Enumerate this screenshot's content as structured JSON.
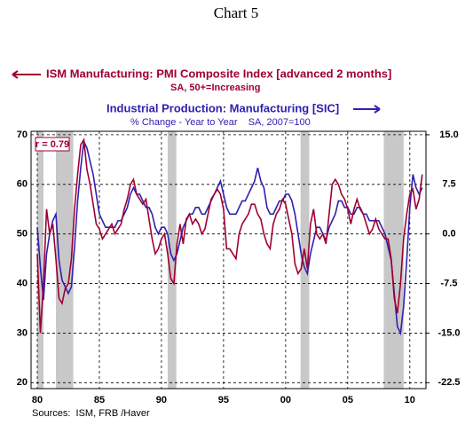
{
  "chart_data": {
    "type": "line",
    "title": "Chart 5",
    "source": "Sources:  ISM, FRB /Haver",
    "annotation": "r = 0.79",
    "x": [
      1980,
      1980.25,
      1980.5,
      1980.75,
      1981,
      1981.25,
      1981.5,
      1981.75,
      1982,
      1982.25,
      1982.5,
      1982.75,
      1983,
      1983.25,
      1983.5,
      1983.75,
      1984,
      1984.25,
      1984.5,
      1984.75,
      1985,
      1985.25,
      1985.5,
      1985.75,
      1986,
      1986.25,
      1986.5,
      1986.75,
      1987,
      1987.25,
      1987.5,
      1987.75,
      1988,
      1988.25,
      1988.5,
      1988.75,
      1989,
      1989.25,
      1989.5,
      1989.75,
      1990,
      1990.25,
      1990.5,
      1990.75,
      1991,
      1991.25,
      1991.5,
      1991.75,
      1992,
      1992.25,
      1992.5,
      1992.75,
      1993,
      1993.25,
      1993.5,
      1993.75,
      1994,
      1994.25,
      1994.5,
      1994.75,
      1995,
      1995.25,
      1995.5,
      1995.75,
      1996,
      1996.25,
      1996.5,
      1996.75,
      1997,
      1997.25,
      1997.5,
      1997.75,
      1998,
      1998.25,
      1998.5,
      1998.75,
      1999,
      1999.25,
      1999.5,
      1999.75,
      2000,
      2000.25,
      2000.5,
      2000.75,
      2001,
      2001.25,
      2001.5,
      2001.75,
      2002,
      2002.25,
      2002.5,
      2002.75,
      2003,
      2003.25,
      2003.5,
      2003.75,
      2004,
      2004.25,
      2004.5,
      2004.75,
      2005,
      2005.25,
      2005.5,
      2005.75,
      2006,
      2006.25,
      2006.5,
      2006.75,
      2007,
      2007.25,
      2007.5,
      2007.75,
      2008,
      2008.25,
      2008.5,
      2008.75,
      2009,
      2009.25,
      2009.5,
      2009.75,
      2010,
      2010.25,
      2010.5,
      2010.75,
      2011
    ],
    "series": [
      {
        "name": "ISM Manufacturing: PMI Composite Index [advanced 2 months]",
        "subtitle": "SA, 50+=Increasing",
        "color": "#a00030",
        "axis": "y",
        "values": [
          46,
          30,
          40,
          55,
          50,
          52,
          45,
          37,
          36,
          39,
          40,
          45,
          55,
          62,
          68,
          69,
          63,
          60,
          56,
          52,
          51,
          49,
          50,
          51,
          52,
          50,
          51,
          52,
          55,
          57,
          60,
          61,
          58,
          57,
          56,
          57,
          53,
          49,
          46,
          47,
          49,
          50,
          46,
          41,
          40,
          48,
          52,
          48,
          53,
          54,
          52,
          53,
          52,
          50,
          51,
          54,
          57,
          58,
          59,
          58,
          55,
          47,
          47,
          46,
          45,
          50,
          52,
          53,
          54,
          56,
          56,
          54,
          53,
          50,
          48,
          47,
          52,
          54,
          55,
          57,
          56,
          53,
          50,
          44,
          42,
          43,
          47,
          43,
          52,
          55,
          50,
          49,
          50,
          48,
          54,
          60,
          61,
          60,
          58,
          57,
          55,
          52,
          55,
          57,
          55,
          54,
          52,
          50,
          51,
          53,
          51,
          50,
          49,
          49,
          45,
          37,
          34,
          40,
          49,
          54,
          58,
          59,
          55,
          57,
          62
        ]
      },
      {
        "name": "Industrial Production: Manufacturing [SIC]",
        "subtitle": "% Change - Year to Year    SA, 2007=100",
        "color": "#3020b0",
        "axis": "y2",
        "values": [
          1,
          -5,
          -10,
          -3,
          0,
          2,
          3,
          -4,
          -7,
          -8,
          -9,
          -8,
          -2,
          5,
          10,
          14,
          13,
          11,
          9,
          6,
          3,
          2,
          1,
          1,
          1,
          1,
          2,
          2,
          3,
          4,
          6,
          7,
          6,
          6,
          5,
          4,
          4,
          3,
          1,
          0,
          1,
          1,
          0,
          -3,
          -4,
          -3,
          -1,
          1,
          2,
          3,
          3,
          4,
          4,
          3,
          3,
          4,
          5,
          6,
          7,
          8,
          6,
          4,
          3,
          3,
          3,
          4,
          5,
          5,
          6,
          7,
          8,
          10,
          8,
          7,
          4,
          3,
          3,
          4,
          5,
          5,
          6,
          6,
          5,
          3,
          0,
          -3,
          -5,
          -6,
          -3,
          -1,
          1,
          1,
          0,
          -1,
          1,
          2,
          3,
          5,
          5,
          4,
          4,
          3,
          3,
          4,
          4,
          3,
          3,
          2,
          2,
          2,
          2,
          1,
          0,
          -2,
          -4,
          -9,
          -14,
          -15,
          -11,
          -4,
          4,
          9,
          7,
          6,
          7
        ]
      }
    ],
    "recessions": [
      [
        1980.0,
        1980.5
      ],
      [
        1981.5,
        1982.9
      ],
      [
        1990.5,
        1991.2
      ],
      [
        2001.2,
        2001.9
      ],
      [
        2007.9,
        2009.5
      ]
    ],
    "xlim": [
      1979.5,
      2011.3
    ],
    "xticks": [
      {
        "value": 1980,
        "label": "80"
      },
      {
        "value": 1985,
        "label": "85"
      },
      {
        "value": 1990,
        "label": "90"
      },
      {
        "value": 1995,
        "label": "95"
      },
      {
        "value": 2000,
        "label": "00"
      },
      {
        "value": 2005,
        "label": "05"
      },
      {
        "value": 2010,
        "label": "10"
      }
    ],
    "ylim": [
      18.8,
      70.7
    ],
    "yticks": [
      20,
      30,
      40,
      50,
      60,
      70
    ],
    "y2lim": [
      -23.4,
      15.525
    ],
    "y2ticks": [
      {
        "value": 15,
        "label": "15.0"
      },
      7.5,
      {
        "value": 0,
        "label": "0.0"
      },
      -7.5,
      {
        "value": -15,
        "label": "-15.0"
      },
      -22.5
    ],
    "grid": true
  }
}
